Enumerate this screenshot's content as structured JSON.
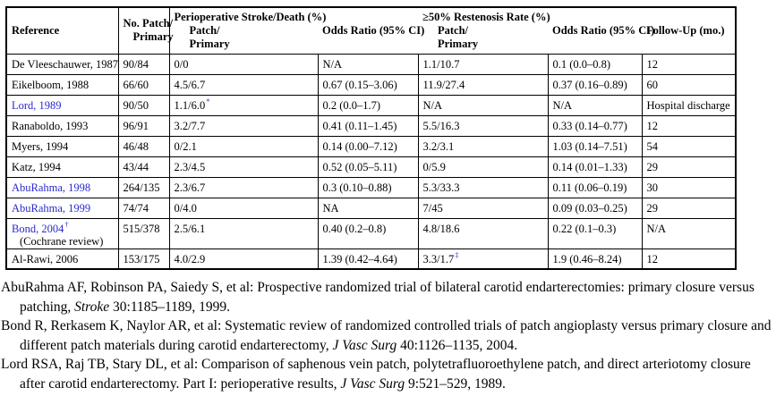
{
  "colors": {
    "link_blue": "#2a2ace",
    "text": "#000000",
    "border": "#000000",
    "background": "#ffffff"
  },
  "table": {
    "header": {
      "reference": "Reference",
      "no_line1": "No. Patch/",
      "no_line2": "Primary",
      "periop_group": "Perioperative Stroke/Death (%)",
      "restenosis_group": "≥50% Restenosis Rate (%)",
      "patch_sub": "Patch/",
      "primary_sub": "Primary",
      "odds_ratio": "Odds Ratio (95% CI)",
      "odds_ratio2": "Odds Ratio (95% CI)",
      "followup": "Follow-Up (mo.)"
    },
    "rows": [
      {
        "reference": "De Vleeschauwer, 1987",
        "link": false,
        "ref_sup": "",
        "note": "",
        "no": "90/84",
        "periop": "0/0",
        "periop_sup": "",
        "or1": "N/A",
        "restenosis": "1.1/10.7",
        "restenosis_sup": "",
        "or2": "0.1 (0.0–0.8)",
        "followup": "12"
      },
      {
        "reference": "Eikelboom, 1988",
        "link": false,
        "ref_sup": "",
        "note": "",
        "no": "66/60",
        "periop": "4.5/6.7",
        "periop_sup": "",
        "or1": "0.67 (0.15–3.06)",
        "restenosis": "11.9/27.4",
        "restenosis_sup": "",
        "or2": "0.37 (0.16–0.89)",
        "followup": "60"
      },
      {
        "reference": "Lord, 1989",
        "link": true,
        "ref_sup": "",
        "note": "",
        "no": "90/50",
        "periop": "1.1/6.0",
        "periop_sup": "*",
        "or1": "0.2 (0.0–1.7)",
        "restenosis": "N/A",
        "restenosis_sup": "",
        "or2": "N/A",
        "followup": "Hospital discharge"
      },
      {
        "reference": "Ranaboldo, 1993",
        "link": false,
        "ref_sup": "",
        "note": "",
        "no": "96/91",
        "periop": "3.2/7.7",
        "periop_sup": "",
        "or1": "0.41 (0.11–1.45)",
        "restenosis": "5.5/16.3",
        "restenosis_sup": "",
        "or2": "0.33 (0.14–0.77)",
        "followup": "12"
      },
      {
        "reference": "Myers, 1994",
        "link": false,
        "ref_sup": "",
        "note": "",
        "no": "46/48",
        "periop": "0/2.1",
        "periop_sup": "",
        "or1": "0.14 (0.00–7.12)",
        "restenosis": "3.2/3.1",
        "restenosis_sup": "",
        "or2": "1.03 (0.14–7.51)",
        "followup": "54"
      },
      {
        "reference": "Katz, 1994",
        "link": false,
        "ref_sup": "",
        "note": "",
        "no": "43/44",
        "periop": "2.3/4.5",
        "periop_sup": "",
        "or1": "0.52 (0.05–5.11)",
        "restenosis": "0/5.9",
        "restenosis_sup": "",
        "or2": "0.14 (0.01–1.33)",
        "followup": "29"
      },
      {
        "reference": "AbuRahma, 1998",
        "link": true,
        "ref_sup": "",
        "note": "",
        "no": "264/135",
        "periop": "2.3/6.7",
        "periop_sup": "",
        "or1": "0.3 (0.10–0.88)",
        "restenosis": "5.3/33.3",
        "restenosis_sup": "",
        "or2": "0.11 (0.06–0.19)",
        "followup": "30"
      },
      {
        "reference": "AbuRahma, 1999",
        "link": true,
        "ref_sup": "",
        "note": "",
        "no": "74/74",
        "periop": "0/4.0",
        "periop_sup": "",
        "or1": "NA",
        "restenosis": "7/45",
        "restenosis_sup": "",
        "or2": "0.09 (0.03–0.25)",
        "followup": "29"
      },
      {
        "reference": "Bond, 2004",
        "link": true,
        "ref_sup": "†",
        "note": "(Cochrane review)",
        "no": "515/378",
        "periop": "2.5/6.1",
        "periop_sup": "",
        "or1": "0.40 (0.2–0.8)",
        "restenosis": "4.8/18.6",
        "restenosis_sup": "",
        "or2": "0.22 (0.1–0.3)",
        "followup": "N/A"
      },
      {
        "reference": "Al-Rawi, 2006",
        "link": false,
        "ref_sup": "",
        "note": "",
        "no": "153/175",
        "periop": "4.0/2.9",
        "periop_sup": "",
        "or1": "1.39 (0.42–4.64)",
        "restenosis": "3.3/1.7",
        "restenosis_sup": "‡",
        "or2": "1.9 (0.46–8.24)",
        "followup": "12"
      }
    ]
  },
  "references": [
    [
      {
        "text": "AbuRahma AF, Robinson PA, Saiedy S, et al: Prospective randomized trial of bilateral carotid endarterectomies: primary closure versus patching, ",
        "italic": false
      },
      {
        "text": "Stroke",
        "italic": true
      },
      {
        "text": " 30:1185–1189, 1999.",
        "italic": false
      }
    ],
    [
      {
        "text": "Bond R, Rerkasem K, Naylor AR, et al: Systematic review of randomized controlled trials of patch angioplasty versus primary closure and different patch materials during carotid endarterectomy, ",
        "italic": false
      },
      {
        "text": "J Vasc Surg",
        "italic": true
      },
      {
        "text": " 40:1126–1135, 2004.",
        "italic": false
      }
    ],
    [
      {
        "text": "Lord RSA, Raj TB, Stary DL, et al: Comparison of saphenous vein patch, polytetrafluoroethylene patch, and direct arteriotomy closure after carotid endarterectomy. Part I: perioperative results, ",
        "italic": false
      },
      {
        "text": "J Vasc Surg",
        "italic": true
      },
      {
        "text": " 9:521–529, 1989.",
        "italic": false
      }
    ]
  ]
}
